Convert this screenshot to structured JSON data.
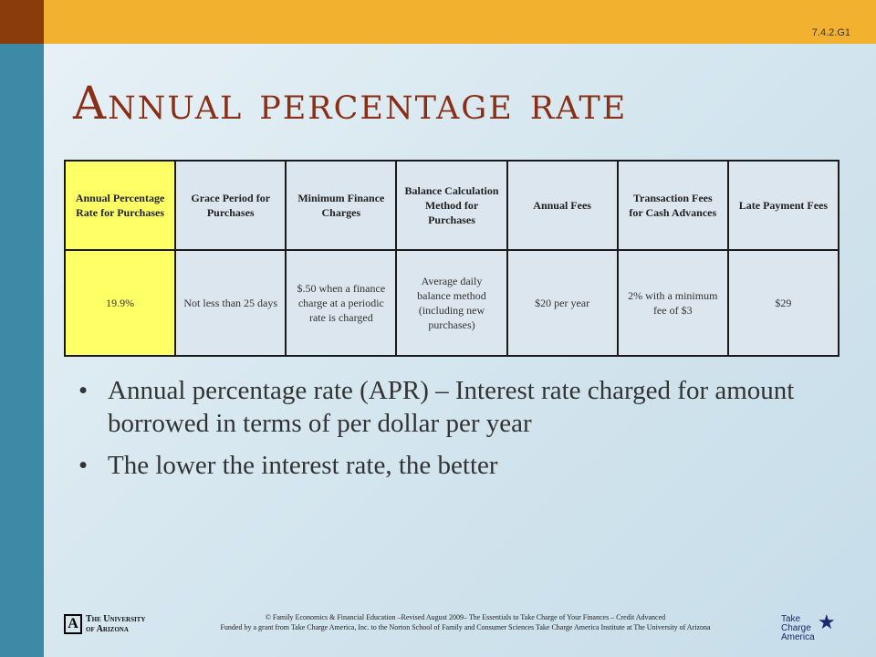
{
  "slide_code": "7.4.2.G1",
  "title": "Annual percentage rate",
  "table": {
    "headers": [
      "Annual Percentage Rate for Purchases",
      "Grace Period for Purchases",
      "Minimum Finance Charges",
      "Balance Calculation Method for Purchases",
      "Annual Fees",
      "Transaction Fees for Cash Advances",
      "Late Payment Fees"
    ],
    "row": [
      "19.9%",
      "Not less than 25 days",
      "$.50 when a finance charge at a periodic rate is charged",
      "Average daily balance method (including new purchases)",
      "$20 per year",
      "2% with a minimum fee of $3",
      "$29"
    ]
  },
  "bullets": [
    "Annual percentage rate (APR) – Interest rate charged for amount borrowed in terms of per dollar per year",
    "The lower the interest rate, the better"
  ],
  "bullet_glyph": "•",
  "footer": {
    "line1": "© Family Economics & Financial Education –Revised August 2009– The Essentials to Take Charge of Your Finances – Credit Advanced",
    "line2": "Funded by a grant from Take Charge America, Inc. to the Norton School of Family and Consumer Sciences Take Charge America Institute at The University of Arizona"
  },
  "logos": {
    "ua_mark": "A",
    "ua_line1": "The University",
    "ua_line2": "of Arizona",
    "tca_line1": "Take",
    "tca_line2": "Charge",
    "tca_line3": "America",
    "tca_star": "★"
  },
  "colors": {
    "title": "#8a2e16",
    "highlight_cell": "#ffff66",
    "top_bar": "#f2b12f",
    "left_bar": "#3d8aa6",
    "corner": "#8a3c0d"
  }
}
